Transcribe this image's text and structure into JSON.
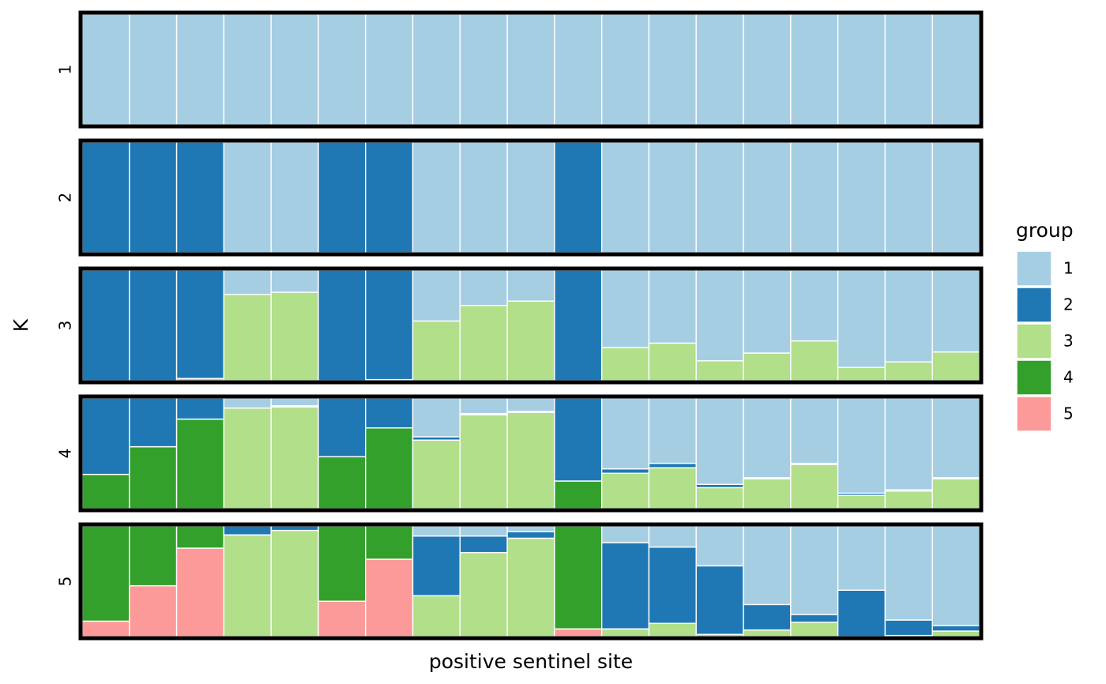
{
  "chart_data": {
    "type": "bar",
    "subtype": "stacked-proportion-facets",
    "xlabel": "positive sentinel site",
    "ylabel": "K",
    "ylim": [
      0,
      1
    ],
    "legend": {
      "title": "group",
      "placement": "right",
      "entries": [
        "1",
        "2",
        "3",
        "4",
        "5"
      ]
    },
    "colors": [
      "#A6CEE3",
      "#1F78B4",
      "#B2DF8A",
      "#33A02C",
      "#FB9A99"
    ],
    "stack_order_bottom_to_top": [
      "5",
      "4",
      "3",
      "2",
      "1"
    ],
    "n_sites": 19,
    "grid": false,
    "facets": [
      {
        "K": "1",
        "sites": [
          [
            1,
            0,
            0,
            0,
            0
          ],
          [
            1,
            0,
            0,
            0,
            0
          ],
          [
            1,
            0,
            0,
            0,
            0
          ],
          [
            1,
            0,
            0,
            0,
            0
          ],
          [
            1,
            0,
            0,
            0,
            0
          ],
          [
            1,
            0,
            0,
            0,
            0
          ],
          [
            1,
            0,
            0,
            0,
            0
          ],
          [
            1,
            0,
            0,
            0,
            0
          ],
          [
            1,
            0,
            0,
            0,
            0
          ],
          [
            1,
            0,
            0,
            0,
            0
          ],
          [
            1,
            0,
            0,
            0,
            0
          ],
          [
            1,
            0,
            0,
            0,
            0
          ],
          [
            1,
            0,
            0,
            0,
            0
          ],
          [
            1,
            0,
            0,
            0,
            0
          ],
          [
            1,
            0,
            0,
            0,
            0
          ],
          [
            1,
            0,
            0,
            0,
            0
          ],
          [
            1,
            0,
            0,
            0,
            0
          ],
          [
            1,
            0,
            0,
            0,
            0
          ],
          [
            1,
            0,
            0,
            0,
            0
          ]
        ]
      },
      {
        "K": "2",
        "sites": [
          [
            0,
            1,
            0,
            0,
            0
          ],
          [
            0,
            1,
            0,
            0,
            0
          ],
          [
            0,
            1,
            0,
            0,
            0
          ],
          [
            1,
            0,
            0,
            0,
            0
          ],
          [
            1,
            0,
            0,
            0,
            0
          ],
          [
            0,
            1,
            0,
            0,
            0
          ],
          [
            0,
            1,
            0,
            0,
            0
          ],
          [
            1,
            0,
            0,
            0,
            0
          ],
          [
            1,
            0,
            0,
            0,
            0
          ],
          [
            1,
            0,
            0,
            0,
            0
          ],
          [
            0,
            1,
            0,
            0,
            0
          ],
          [
            1,
            0,
            0,
            0,
            0
          ],
          [
            1,
            0,
            0,
            0,
            0
          ],
          [
            1,
            0,
            0,
            0,
            0
          ],
          [
            1,
            0,
            0,
            0,
            0
          ],
          [
            1,
            0,
            0,
            0,
            0
          ],
          [
            1,
            0,
            0,
            0,
            0
          ],
          [
            1,
            0,
            0,
            0,
            0
          ],
          [
            1,
            0,
            0,
            0,
            0
          ]
        ]
      },
      {
        "K": "3",
        "sites": [
          [
            0,
            1,
            0,
            0,
            0
          ],
          [
            0,
            1,
            0,
            0,
            0
          ],
          [
            0,
            0.98,
            0.02,
            0,
            0
          ],
          [
            0.22,
            0,
            0.78,
            0,
            0
          ],
          [
            0.2,
            0,
            0.8,
            0,
            0
          ],
          [
            0,
            1,
            0,
            0,
            0
          ],
          [
            0,
            0.99,
            0.01,
            0,
            0
          ],
          [
            0.46,
            0,
            0.54,
            0,
            0
          ],
          [
            0.32,
            0,
            0.68,
            0,
            0
          ],
          [
            0.28,
            0,
            0.72,
            0,
            0
          ],
          [
            0,
            1,
            0,
            0,
            0
          ],
          [
            0.7,
            0,
            0.3,
            0,
            0
          ],
          [
            0.66,
            0,
            0.34,
            0,
            0
          ],
          [
            0.82,
            0,
            0.18,
            0,
            0
          ],
          [
            0.75,
            0,
            0.25,
            0,
            0
          ],
          [
            0.64,
            0,
            0.36,
            0,
            0
          ],
          [
            0.88,
            0,
            0.12,
            0,
            0
          ],
          [
            0.83,
            0,
            0.17,
            0,
            0
          ],
          [
            0.74,
            0,
            0.26,
            0,
            0
          ]
        ]
      },
      {
        "K": "4",
        "sites": [
          [
            0,
            0.69,
            0,
            0.31,
            0
          ],
          [
            0,
            0.44,
            0,
            0.56,
            0
          ],
          [
            0,
            0.19,
            0,
            0.81,
            0
          ],
          [
            0.09,
            0,
            0.91,
            0,
            0
          ],
          [
            0.07,
            0.01,
            0.92,
            0,
            0
          ],
          [
            0,
            0.53,
            0,
            0.47,
            0
          ],
          [
            0,
            0.27,
            0,
            0.73,
            0
          ],
          [
            0.35,
            0.03,
            0.62,
            0,
            0
          ],
          [
            0.14,
            0.01,
            0.85,
            0,
            0
          ],
          [
            0.12,
            0.01,
            0.87,
            0,
            0
          ],
          [
            0,
            0.75,
            0,
            0.25,
            0
          ],
          [
            0.64,
            0.04,
            0.32,
            0,
            0
          ],
          [
            0.59,
            0.04,
            0.37,
            0,
            0
          ],
          [
            0.78,
            0.03,
            0.19,
            0,
            0
          ],
          [
            0.72,
            0.01,
            0.27,
            0,
            0
          ],
          [
            0.59,
            0.01,
            0.4,
            0,
            0
          ],
          [
            0.86,
            0.02,
            0.12,
            0,
            0
          ],
          [
            0.83,
            0.01,
            0.16,
            0,
            0
          ],
          [
            0.72,
            0.01,
            0.27,
            0,
            0
          ]
        ]
      },
      {
        "K": "5",
        "sites": [
          [
            0,
            0,
            0,
            0.86,
            0.14
          ],
          [
            0,
            0,
            0,
            0.54,
            0.46
          ],
          [
            0,
            0,
            0,
            0.2,
            0.8
          ],
          [
            0,
            0.08,
            0.92,
            0,
            0
          ],
          [
            0,
            0.04,
            0.96,
            0,
            0
          ],
          [
            0,
            0,
            0,
            0.68,
            0.32
          ],
          [
            0,
            0,
            0,
            0.3,
            0.7
          ],
          [
            0.09,
            0.54,
            0.37,
            0,
            0
          ],
          [
            0.09,
            0.15,
            0.76,
            0,
            0
          ],
          [
            0.05,
            0.06,
            0.89,
            0,
            0
          ],
          [
            0,
            0,
            0,
            0.93,
            0.07
          ],
          [
            0.15,
            0.78,
            0.07,
            0,
            0
          ],
          [
            0.19,
            0.69,
            0.12,
            0,
            0
          ],
          [
            0.36,
            0.62,
            0.02,
            0,
            0
          ],
          [
            0.71,
            0.23,
            0.06,
            0,
            0
          ],
          [
            0.8,
            0.07,
            0.13,
            0,
            0
          ],
          [
            0.58,
            0.42,
            0,
            0,
            0
          ],
          [
            0.85,
            0.14,
            0.01,
            0,
            0
          ],
          [
            0.9,
            0.05,
            0.05,
            0,
            0
          ]
        ]
      }
    ]
  }
}
